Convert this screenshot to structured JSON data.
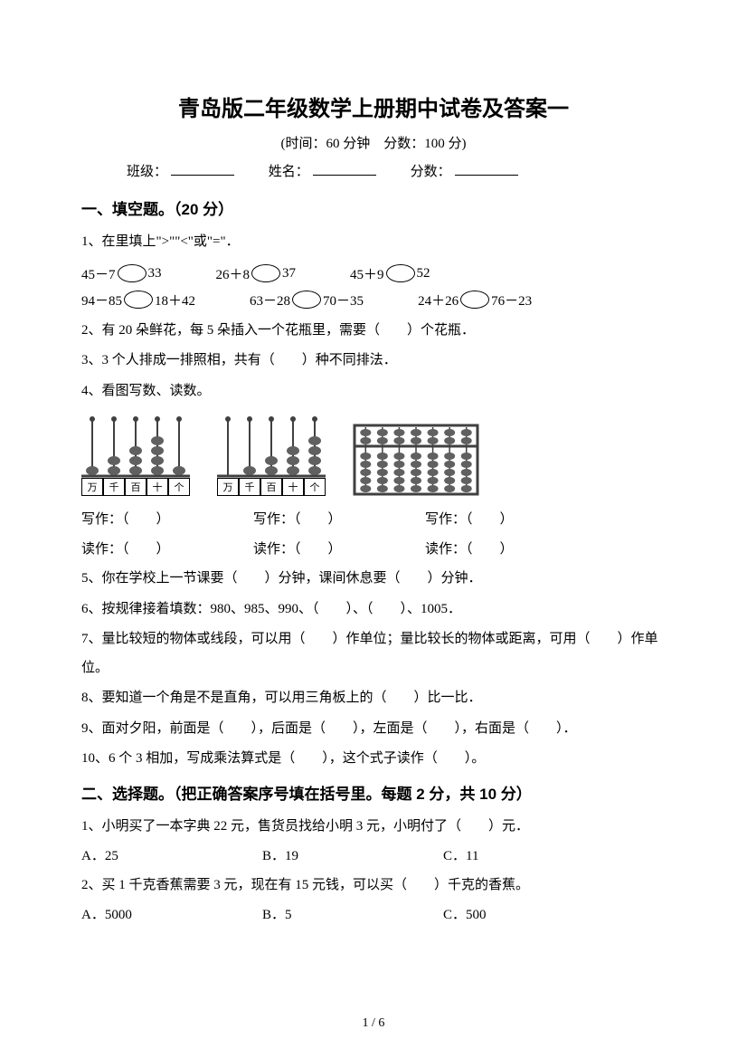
{
  "title": "青岛版二年级数学上册期中试卷及答案一",
  "subtitle": "(时间：60 分钟　分数：100 分)",
  "info": {
    "class_label": "班级：",
    "name_label": "姓名：",
    "score_label": "分数："
  },
  "section1": {
    "header": "一、填空题。（20 分）",
    "q1": {
      "text": "1、在里填上\">\"\"<\"或\"=\"．",
      "row1": {
        "a_left": "45－7",
        "a_right": "33",
        "b_left": "26＋8",
        "b_right": "37",
        "c_left": "45＋9",
        "c_right": "52"
      },
      "row2": {
        "a_left": "94－85",
        "a_right": "18＋42",
        "b_left": "63－28",
        "b_right": "70－35",
        "c_left": "24＋26",
        "c_right": "76－23"
      }
    },
    "q2": "2、有 20 朵鲜花，每 5 朵插入一个花瓶里，需要（　　）个花瓶．",
    "q3": "3、3 个人排成一排照相，共有（　　）种不同排法．",
    "q4": {
      "text": "4、看图写数、读数。",
      "labels": [
        "万",
        "千",
        "百",
        "十",
        "个"
      ],
      "write": "写作：（　　）",
      "read": "读作：（　　）",
      "abacus1_beads": [
        1,
        2,
        3,
        4,
        1
      ],
      "abacus2_beads": [
        0,
        1,
        2,
        3,
        4
      ],
      "abacus3_type": "suanpan",
      "bead_color": "#606060",
      "rod_color": "#404040"
    },
    "q5": "5、你在学校上一节课要（　　）分钟，课间休息要（　　）分钟．",
    "q6": "6、按规律接着填数：980、985、990、（　　）、（　　）、1005．",
    "q7": "7、量比较短的物体或线段，可以用（　　）作单位；量比较长的物体或距离，可用（　　）作单位。",
    "q8": "8、要知道一个角是不是直角，可以用三角板上的（　　）比一比．",
    "q9": "9、面对夕阳，前面是（　　），后面是（　　），左面是（　　），右面是（　　）．",
    "q10": "10、6 个 3 相加，写成乘法算式是（　　），这个式子读作（　　）。"
  },
  "section2": {
    "header": "二、选择题。（把正确答案序号填在括号里。每题 2 分，共 10 分）",
    "q1": {
      "text": "1、小明买了一本字典 22 元，售货员找给小明 3 元，小明付了（　　）元．",
      "a": "A．25",
      "b": "B．19",
      "c": "C．11"
    },
    "q2": {
      "text": "2、买 1 千克香蕉需要 3 元，现在有 15 元钱，可以买（　　）千克的香蕉。",
      "a": "A．5000",
      "b": "B．5",
      "c": "C．500"
    }
  },
  "page_num": "1 / 6"
}
